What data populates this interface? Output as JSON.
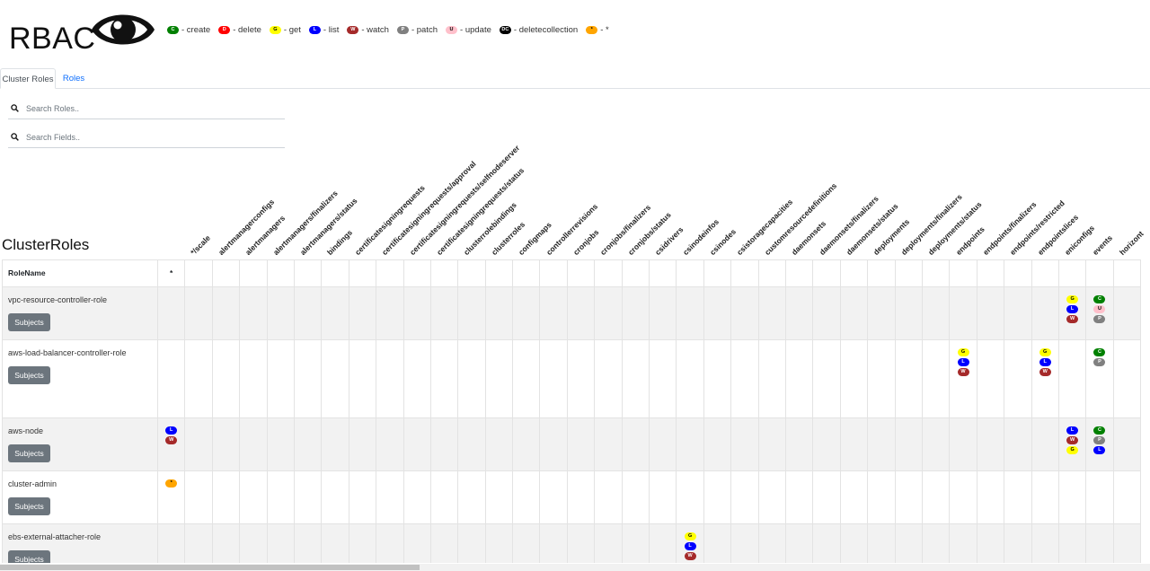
{
  "header": {
    "logo": "RBAC",
    "eye_icon": "eye-icon"
  },
  "legend": [
    {
      "letter": "C",
      "text": "- create",
      "bg": "#008000",
      "fg": "#ffffff"
    },
    {
      "letter": "D",
      "text": "- delete",
      "bg": "#ff0000",
      "fg": "#ffffff"
    },
    {
      "letter": "G",
      "text": "- get",
      "bg": "#ffff00",
      "fg": "#000000"
    },
    {
      "letter": "L",
      "text": "- list",
      "bg": "#0000ff",
      "fg": "#ffffff"
    },
    {
      "letter": "W",
      "text": "- watch",
      "bg": "#a52a2a",
      "fg": "#ffffff"
    },
    {
      "letter": "P",
      "text": "- patch",
      "bg": "#808080",
      "fg": "#ffffff"
    },
    {
      "letter": "U",
      "text": "- update",
      "bg": "#ffc0cb",
      "fg": "#000000"
    },
    {
      "letter": "DC",
      "text": "- deletecollection",
      "bg": "#000000",
      "fg": "#ffffff"
    },
    {
      "letter": "*",
      "text": "- *",
      "bg": "#ffa500",
      "fg": "#000000"
    }
  ],
  "tabs": [
    {
      "label": "Cluster Roles",
      "active": true
    },
    {
      "label": "Roles",
      "active": false
    }
  ],
  "search_roles": {
    "placeholder": "Search Roles.."
  },
  "search_fields": {
    "placeholder": "Search Fields.."
  },
  "section_title": "ClusterRoles",
  "table": {
    "rolename_header": "RoleName",
    "subjects_label": "Subjects",
    "columns": [
      "*",
      "*/scale",
      "alertmanagerconfigs",
      "alertmanagers",
      "alertmanagers/finalizers",
      "alertmanagers/status",
      "bindings",
      "certificatesigningrequests",
      "certificatesigningrequests/approval",
      "certificatesigningrequests/selfnodeserver",
      "certificatesigningrequests/status",
      "clusterrolebindings",
      "clusterroles",
      "configmaps",
      "controllerrevisions",
      "cronjobs",
      "cronjobs/finalizers",
      "cronjobs/status",
      "csidrivers",
      "csinodeinfos",
      "csinodes",
      "csistoragecapacities",
      "customresourcedefinitions",
      "daemonsets",
      "daemonsets/finalizers",
      "daemonsets/status",
      "deployments",
      "deployments/finalizers",
      "deployments/status",
      "endpoints",
      "endpoints/finalizers",
      "endpoints/restricted",
      "endpointslices",
      "eniconfigs",
      "events",
      "horizont"
    ],
    "rows": [
      {
        "name": "vpc-resource-controller-role",
        "perms": {
          "eniconfigs": [
            "G",
            "L",
            "W"
          ],
          "events": [
            "C",
            "U",
            "P"
          ]
        }
      },
      {
        "name": "aws-load-balancer-controller-role",
        "perms": {
          "endpoints": [
            "G",
            "L",
            "W"
          ],
          "endpointslices": [
            "G",
            "L",
            "W"
          ],
          "events": [
            "C",
            "P"
          ]
        }
      },
      {
        "name": "aws-node",
        "perms": {
          "*": [
            "L",
            "W"
          ],
          "eniconfigs": [
            "L",
            "W",
            "G"
          ],
          "events": [
            "C",
            "P",
            "L"
          ]
        }
      },
      {
        "name": "cluster-admin",
        "perms": {
          "*": [
            "*"
          ]
        }
      },
      {
        "name": "ebs-external-attacher-role",
        "perms": {
          "csinodeinfos": [
            "G",
            "L",
            "W"
          ]
        }
      }
    ]
  }
}
